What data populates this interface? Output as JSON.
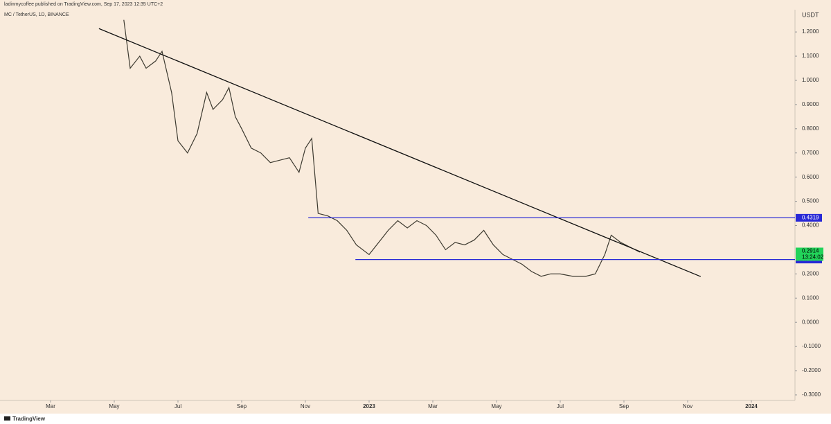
{
  "chart_data": {
    "type": "line",
    "header": "ladinmycoffee published on TradingView.com, Sep 17, 2023 12:35 UTC+2",
    "symbol": "MC / TetherUS, 1D, BINANCE",
    "currency": "USDT",
    "footer": "TradingView",
    "color": "#3d3a30",
    "x": [
      4.3,
      4.5,
      4.8,
      5.0,
      5.3,
      5.5,
      5.8,
      6.0,
      6.3,
      6.6,
      6.9,
      7.1,
      7.4,
      7.6,
      7.8,
      8.0,
      8.3,
      8.6,
      8.9,
      9.2,
      9.5,
      9.8,
      10.0,
      10.2,
      10.4,
      10.7,
      11.0,
      11.3,
      11.6,
      12.0,
      12.3,
      12.6,
      12.9,
      13.2,
      13.5,
      13.8,
      14.1,
      14.4,
      14.7,
      15.0,
      15.3,
      15.6,
      15.9,
      16.2,
      16.5,
      16.8,
      17.1,
      17.4,
      17.7,
      18.0,
      18.4,
      18.8,
      19.1,
      19.4,
      19.6,
      19.9,
      20.2,
      20.5
    ],
    "values": [
      1.25,
      1.05,
      1.1,
      1.05,
      1.08,
      1.12,
      0.95,
      0.75,
      0.7,
      0.78,
      0.95,
      0.88,
      0.92,
      0.97,
      0.85,
      0.8,
      0.72,
      0.7,
      0.66,
      0.67,
      0.68,
      0.62,
      0.72,
      0.76,
      0.45,
      0.44,
      0.42,
      0.38,
      0.32,
      0.28,
      0.33,
      0.38,
      0.42,
      0.39,
      0.42,
      0.4,
      0.36,
      0.3,
      0.33,
      0.32,
      0.34,
      0.38,
      0.32,
      0.28,
      0.26,
      0.24,
      0.21,
      0.19,
      0.2,
      0.2,
      0.19,
      0.19,
      0.2,
      0.28,
      0.36,
      0.33,
      0.31,
      0.29
    ],
    "trendline": {
      "color": "#111111",
      "x": [
        3.52,
        22.41
      ],
      "values": [
        1.214,
        0.189
      ]
    },
    "levels": [
      {
        "value": 0.4319,
        "start": 10.09,
        "color": "#2929d6"
      },
      {
        "value": 0.2594,
        "start": 11.57,
        "color": "#2929d6"
      }
    ],
    "last_price": {
      "value": 0.2914,
      "countdown": "13:24:02",
      "color": "#22d35a"
    },
    "xlim": [
      0.413,
      25.37
    ],
    "ylim": [
      -0.323,
      1.292
    ],
    "xticks": [
      {
        "value": 2,
        "label": "Mar"
      },
      {
        "value": 4,
        "label": "May"
      },
      {
        "value": 6,
        "label": "Jul"
      },
      {
        "value": 8,
        "label": "Sep"
      },
      {
        "value": 10,
        "label": "Nov"
      },
      {
        "value": 12,
        "label": "2023"
      },
      {
        "value": 14,
        "label": "Mar"
      },
      {
        "value": 16,
        "label": "May"
      },
      {
        "value": 18,
        "label": "Jul"
      },
      {
        "value": 20,
        "label": "Sep"
      },
      {
        "value": 22,
        "label": "Nov"
      },
      {
        "value": 24,
        "label": "2024"
      }
    ],
    "yticks": [
      {
        "value": 1.2,
        "label": "1.2000"
      },
      {
        "value": 1.1,
        "label": "1.1000"
      },
      {
        "value": 1.0,
        "label": "1.0000"
      },
      {
        "value": 0.9,
        "label": "0.9000"
      },
      {
        "value": 0.8,
        "label": "0.8000"
      },
      {
        "value": 0.7,
        "label": "0.7000"
      },
      {
        "value": 0.6,
        "label": "0.6000"
      },
      {
        "value": 0.5,
        "label": "0.5000"
      },
      {
        "value": 0.4,
        "label": "0.4000"
      },
      {
        "value": 0.2,
        "label": "0.2000"
      },
      {
        "value": 0.1,
        "label": "0.1000"
      },
      {
        "value": 0,
        "label": "0.0000"
      },
      {
        "value": -0.1,
        "label": "-0.1000"
      },
      {
        "value": -0.2,
        "label": "-0.2000"
      },
      {
        "value": -0.3,
        "label": "-0.3000"
      }
    ]
  }
}
